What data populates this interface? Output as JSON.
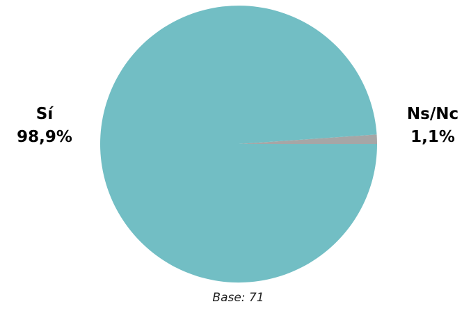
{
  "chart_data": {
    "type": "pie",
    "title": "",
    "slices": [
      {
        "label": "Sí",
        "value": 98.9,
        "display": "98,9%",
        "color": "#72bec4"
      },
      {
        "label": "Ns/Nc",
        "value": 1.1,
        "display": "1,1%",
        "color": "#a6a6a6"
      }
    ],
    "start_angle_deg": 0,
    "direction": "counterclockwise-from-3-oclock",
    "note": "Base: 71",
    "legend": "none"
  }
}
